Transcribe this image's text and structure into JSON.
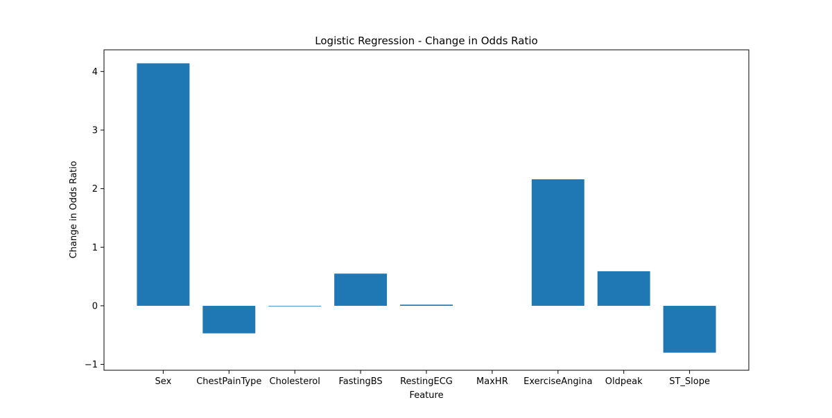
{
  "chart_data": {
    "type": "bar",
    "title": "Logistic Regression - Change in Odds Ratio",
    "xlabel": "Feature",
    "ylabel": "Change in Odds Ratio",
    "categories": [
      "Sex",
      "ChestPainType",
      "Cholesterol",
      "FastingBS",
      "RestingECG",
      "MaxHR",
      "ExerciseAngina",
      "Oldpeak",
      "ST_Slope"
    ],
    "values": [
      4.14,
      -0.47,
      -0.01,
      0.55,
      0.02,
      0.0,
      2.16,
      0.59,
      -0.8
    ],
    "ylim": [
      -1.1,
      4.37
    ],
    "yticks": [
      -1,
      0,
      1,
      2,
      3,
      4
    ],
    "ytick_labels": [
      "−1",
      "0",
      "1",
      "2",
      "3",
      "4"
    ],
    "grid": false,
    "bar_color": "#1f77b4"
  }
}
